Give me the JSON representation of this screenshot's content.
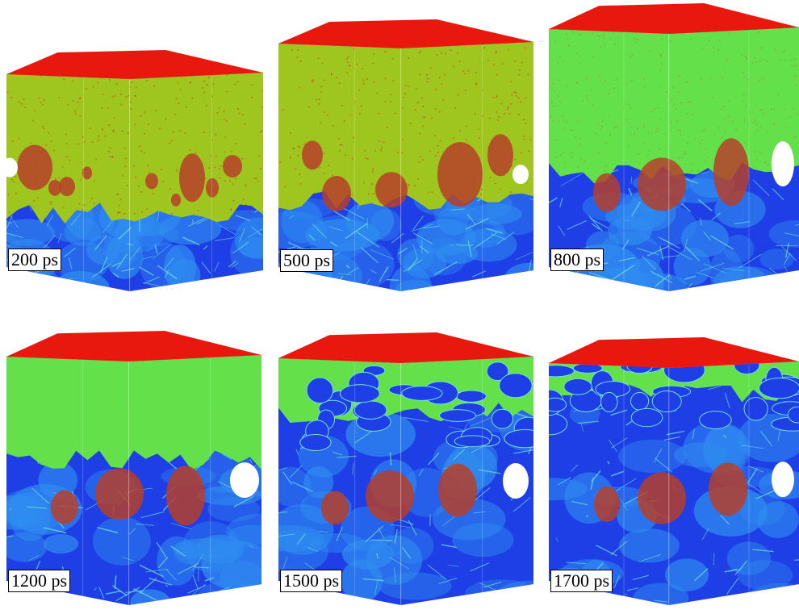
{
  "figure": {
    "panels": [
      {
        "label": "200 ps"
      },
      {
        "label": "500 ps"
      },
      {
        "label": "800 ps"
      },
      {
        "label": "1200 ps"
      },
      {
        "label": "1500 ps"
      },
      {
        "label": "1700 ps"
      }
    ]
  },
  "colors": {
    "top_face": "#e8180e",
    "amorphous": "#9fc51f",
    "amorphous_late": "#63e04a",
    "crystal_light": "#2f8cf0",
    "crystal_dark": "#1f3fe6",
    "boundary": "#6fe0d6",
    "particle": "#b5402a",
    "void": "#ffffff"
  }
}
